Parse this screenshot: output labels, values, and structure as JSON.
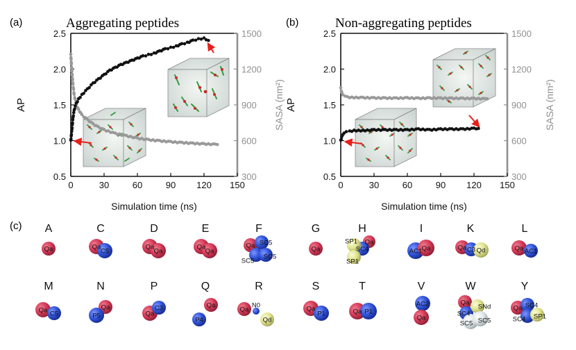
{
  "colors": {
    "ap_series": "#111111",
    "sasa_series": "#999999",
    "sasa_axis": "#8f8f8f",
    "arrow": "#e8201a",
    "bead_qa": "#d43a57",
    "bead_blue": "#2f52d6",
    "bead_yellow": "#dfe38e",
    "bead_white": "#dfe5e8"
  },
  "chart_data": [
    {
      "type": "scatter",
      "panel_label": "(a)",
      "title": "Aggregating peptides",
      "xlabel": "Simulation time (ns)",
      "ylabel": "AP",
      "ylabel_right": "SASA (nm²)",
      "xlim": [
        0,
        150
      ],
      "ylim": [
        0.5,
        2.5
      ],
      "ylim_right": [
        300,
        1500
      ],
      "xticks": [
        "0",
        "30",
        "60",
        "90",
        "120",
        "150"
      ],
      "yticks": [
        "0.5",
        "1.0",
        "1.5",
        "2.0",
        "2.5"
      ],
      "yticks_right": [
        "300",
        "600",
        "900",
        "1200",
        "1500"
      ],
      "series": [
        {
          "name": "AP",
          "axis": "left",
          "x": [
            0,
            1,
            2,
            3,
            4,
            5,
            7,
            10,
            15,
            20,
            25,
            30,
            35,
            40,
            45,
            50,
            55,
            60,
            65,
            70,
            75,
            80,
            85,
            90,
            95,
            100,
            105,
            110,
            115,
            120,
            124
          ],
          "y": [
            1.0,
            1.15,
            1.32,
            1.42,
            1.48,
            1.52,
            1.58,
            1.64,
            1.72,
            1.8,
            1.86,
            1.92,
            1.98,
            2.02,
            2.06,
            2.09,
            2.12,
            2.15,
            2.18,
            2.2,
            2.22,
            2.25,
            2.28,
            2.3,
            2.32,
            2.35,
            2.37,
            2.4,
            2.42,
            2.43,
            2.4
          ]
        },
        {
          "name": "SASA",
          "axis": "right",
          "x": [
            0,
            1,
            2,
            3,
            5,
            7,
            10,
            15,
            20,
            25,
            30,
            40,
            50,
            60,
            70,
            80,
            90,
            100,
            110,
            120,
            130,
            132
          ],
          "y": [
            1320,
            1180,
            1070,
            985,
            900,
            860,
            815,
            775,
            740,
            712,
            690,
            660,
            640,
            620,
            607,
            598,
            590,
            583,
            577,
            572,
            568,
            567
          ]
        }
      ]
    },
    {
      "type": "scatter",
      "panel_label": "(b)",
      "title": "Non-aggregating peptides",
      "xlabel": "Simulation time (ns)",
      "ylabel": "AP",
      "ylabel_right": "SASA (nm²)",
      "xlim": [
        0,
        150
      ],
      "ylim": [
        0.5,
        2.5
      ],
      "ylim_right": [
        300,
        1500
      ],
      "xticks": [
        "0",
        "30",
        "60",
        "90",
        "120",
        "150"
      ],
      "yticks": [
        "0.5",
        "1.0",
        "1.5",
        "2.0",
        "2.5"
      ],
      "yticks_right": [
        "300",
        "600",
        "900",
        "1200",
        "1500"
      ],
      "series": [
        {
          "name": "AP",
          "axis": "left",
          "x": [
            0,
            1,
            2,
            3,
            5,
            8,
            12,
            20,
            30,
            40,
            50,
            60,
            70,
            80,
            90,
            100,
            110,
            120,
            124
          ],
          "y": [
            1.0,
            1.05,
            1.08,
            1.1,
            1.12,
            1.13,
            1.14,
            1.14,
            1.15,
            1.15,
            1.15,
            1.15,
            1.16,
            1.15,
            1.16,
            1.16,
            1.16,
            1.17,
            1.17
          ]
        },
        {
          "name": "SASA",
          "axis": "right",
          "x": [
            0,
            1,
            2,
            4,
            6,
            10,
            20,
            30,
            40,
            50,
            60,
            70,
            80,
            90,
            100,
            110,
            120,
            130,
            132
          ],
          "y": [
            1040,
            1000,
            980,
            970,
            965,
            962,
            960,
            958,
            957,
            956,
            958,
            955,
            957,
            956,
            955,
            954,
            953,
            950,
            950
          ]
        }
      ]
    }
  ],
  "panel_c": {
    "label": "(c)",
    "row1": [
      {
        "letter": "A",
        "beads": [
          {
            "type": "Qa",
            "text": "Qa"
          }
        ]
      },
      {
        "letter": "C",
        "beads": [
          {
            "type": "Qa",
            "text": "Qa"
          },
          {
            "type": "blue",
            "text": "C5"
          }
        ]
      },
      {
        "letter": "D",
        "beads": [
          {
            "type": "Qa",
            "text": "Qa"
          },
          {
            "type": "Qa",
            "text": "Qa"
          }
        ]
      },
      {
        "letter": "E",
        "beads": [
          {
            "type": "Qa",
            "text": "Qa"
          },
          {
            "type": "Qa",
            "text": "Qa"
          }
        ]
      },
      {
        "letter": "F",
        "beads": [
          {
            "type": "Qa",
            "text": "Qa"
          },
          {
            "type": "blue",
            "text": "SC5"
          },
          {
            "type": "blue",
            "text": "SC5"
          },
          {
            "type": "blue",
            "text": "SC5"
          }
        ]
      },
      {
        "letter": "G",
        "beads": [
          {
            "type": "Qa",
            "text": "Qa"
          }
        ]
      },
      {
        "letter": "H",
        "beads": [
          {
            "type": "Qa",
            "text": "Qa"
          },
          {
            "type": "blue",
            "text": "SC4"
          },
          {
            "type": "yellow",
            "text": "SP1"
          },
          {
            "type": "yellow",
            "text": "SP1"
          }
        ]
      },
      {
        "letter": "I",
        "beads": [
          {
            "type": "blue",
            "text": "AC1"
          },
          {
            "type": "Qa",
            "text": "Qa"
          }
        ]
      },
      {
        "letter": "K",
        "beads": [
          {
            "type": "Qa",
            "text": "Qa"
          },
          {
            "type": "blue",
            "text": "C3"
          },
          {
            "type": "yellow",
            "text": "Qd"
          }
        ]
      },
      {
        "letter": "L",
        "beads": [
          {
            "type": "Qa",
            "text": "Qa"
          },
          {
            "type": "blue",
            "text": "AC1"
          }
        ]
      }
    ],
    "row2": [
      {
        "letter": "M",
        "beads": [
          {
            "type": "Qa",
            "text": "Qa"
          },
          {
            "type": "blue",
            "text": "C5"
          }
        ]
      },
      {
        "letter": "N",
        "beads": [
          {
            "type": "Qa",
            "text": "Qa"
          },
          {
            "type": "blue",
            "text": "P5"
          }
        ]
      },
      {
        "letter": "P",
        "beads": [
          {
            "type": "Qa",
            "text": "Qa"
          },
          {
            "type": "blue",
            "text": "C3"
          }
        ]
      },
      {
        "letter": "Q",
        "beads": [
          {
            "type": "Qa",
            "text": "Qa"
          },
          {
            "type": "blue",
            "text": "P4"
          }
        ]
      },
      {
        "letter": "R",
        "beads": [
          {
            "type": "Qa",
            "text": "Qa"
          },
          {
            "type": "blue",
            "text": "N0"
          },
          {
            "type": "yellow",
            "text": "Qd"
          }
        ]
      },
      {
        "letter": "S",
        "beads": [
          {
            "type": "Qa",
            "text": "Qa"
          },
          {
            "type": "blue",
            "text": "P1"
          }
        ]
      },
      {
        "letter": "T",
        "beads": [
          {
            "type": "Qa",
            "text": "Qa"
          },
          {
            "type": "blue",
            "text": "P1"
          }
        ]
      },
      {
        "letter": "V",
        "beads": [
          {
            "type": "blue",
            "text": "AC2"
          },
          {
            "type": "Qa",
            "text": "Qa"
          }
        ]
      },
      {
        "letter": "W",
        "beads": [
          {
            "type": "Qa",
            "text": "Qa"
          },
          {
            "type": "blue",
            "text": "SC4"
          },
          {
            "type": "yellow",
            "text": "SNd"
          },
          {
            "type": "white",
            "text": "SC5"
          },
          {
            "type": "white",
            "text": "SC5"
          }
        ]
      },
      {
        "letter": "Y",
        "beads": [
          {
            "type": "Qa",
            "text": "Qa"
          },
          {
            "type": "blue",
            "text": "SC4"
          },
          {
            "type": "blue",
            "text": "SC4"
          },
          {
            "type": "yellow",
            "text": "SP1"
          }
        ]
      }
    ]
  }
}
